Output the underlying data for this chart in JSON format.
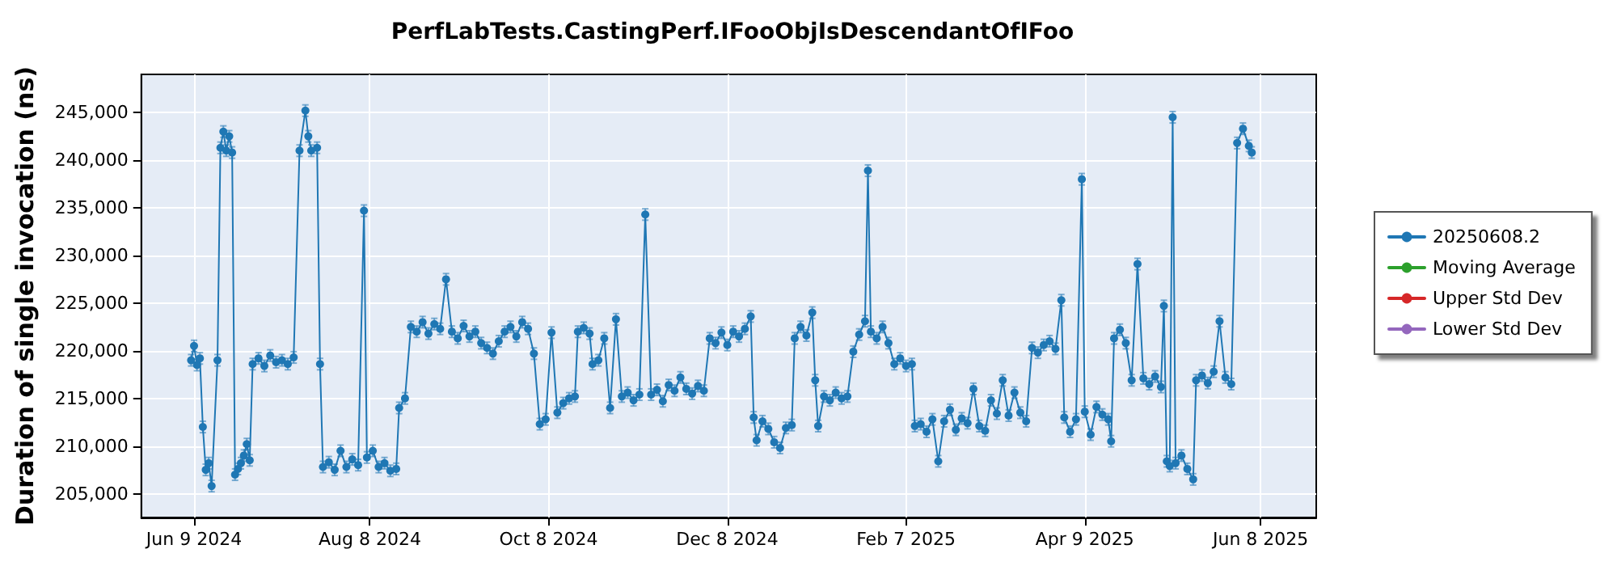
{
  "chart_data": {
    "type": "line",
    "title": "PerfLabTests.CastingPerf.IFooObjIsDescendantOfIFoo",
    "ylabel": "Duration of single invocation (ns)",
    "xlim": [
      "2024-05-22",
      "2025-06-27"
    ],
    "xticks": [
      {
        "value": "2024-06-09",
        "label": "Jun 9 2024"
      },
      {
        "value": "2024-08-08",
        "label": "Aug 8 2024"
      },
      {
        "value": "2024-10-08",
        "label": "Oct 8 2024"
      },
      {
        "value": "2024-12-08",
        "label": "Dec 8 2024"
      },
      {
        "value": "2025-02-07",
        "label": "Feb 7 2025"
      },
      {
        "value": "2025-04-09",
        "label": "Apr 9 2025"
      },
      {
        "value": "2025-06-08",
        "label": "Jun 8 2025"
      }
    ],
    "ylim": [
      202500,
      249000
    ],
    "yticks": [
      {
        "value": 205000,
        "label": "205,000"
      },
      {
        "value": 210000,
        "label": "210,000"
      },
      {
        "value": 215000,
        "label": "215,000"
      },
      {
        "value": 220000,
        "label": "220,000"
      },
      {
        "value": 225000,
        "label": "225,000"
      },
      {
        "value": 230000,
        "label": "230,000"
      },
      {
        "value": 235000,
        "label": "235,000"
      },
      {
        "value": 240000,
        "label": "240,000"
      },
      {
        "value": 245000,
        "label": "245,000"
      }
    ],
    "grid": true,
    "legend": "right",
    "marker": "circle",
    "line_style": "solid",
    "series": [
      {
        "name": "20250608.2",
        "color": "#1f77b4",
        "x": [
          "2024-06-08",
          "2024-06-09",
          "2024-06-10",
          "2024-06-11",
          "2024-06-12",
          "2024-06-13",
          "2024-06-14",
          "2024-06-15",
          "2024-06-17",
          "2024-06-18",
          "2024-06-19",
          "2024-06-20",
          "2024-06-21",
          "2024-06-22",
          "2024-06-23",
          "2024-06-24",
          "2024-06-25",
          "2024-06-26",
          "2024-06-27",
          "2024-06-28",
          "2024-06-29",
          "2024-07-01",
          "2024-07-03",
          "2024-07-05",
          "2024-07-07",
          "2024-07-09",
          "2024-07-11",
          "2024-07-13",
          "2024-07-15",
          "2024-07-17",
          "2024-07-18",
          "2024-07-19",
          "2024-07-21",
          "2024-07-22",
          "2024-07-23",
          "2024-07-25",
          "2024-07-27",
          "2024-07-29",
          "2024-07-31",
          "2024-08-02",
          "2024-08-04",
          "2024-08-06",
          "2024-08-07",
          "2024-08-09",
          "2024-08-11",
          "2024-08-13",
          "2024-08-15",
          "2024-08-17",
          "2024-08-18",
          "2024-08-20",
          "2024-08-22",
          "2024-08-24",
          "2024-08-26",
          "2024-08-28",
          "2024-08-30",
          "2024-09-01",
          "2024-09-03",
          "2024-09-05",
          "2024-09-07",
          "2024-09-09",
          "2024-09-11",
          "2024-09-13",
          "2024-09-15",
          "2024-09-17",
          "2024-09-19",
          "2024-09-21",
          "2024-09-23",
          "2024-09-25",
          "2024-09-27",
          "2024-09-29",
          "2024-10-01",
          "2024-10-03",
          "2024-10-05",
          "2024-10-07",
          "2024-10-09",
          "2024-10-11",
          "2024-10-13",
          "2024-10-15",
          "2024-10-17",
          "2024-10-18",
          "2024-10-20",
          "2024-10-22",
          "2024-10-23",
          "2024-10-25",
          "2024-10-27",
          "2024-10-29",
          "2024-10-31",
          "2024-11-02",
          "2024-11-04",
          "2024-11-06",
          "2024-11-08",
          "2024-11-10",
          "2024-11-12",
          "2024-11-14",
          "2024-11-16",
          "2024-11-18",
          "2024-11-20",
          "2024-11-22",
          "2024-11-24",
          "2024-11-26",
          "2024-11-28",
          "2024-11-30",
          "2024-12-02",
          "2024-12-04",
          "2024-12-06",
          "2024-12-08",
          "2024-12-10",
          "2024-12-12",
          "2024-12-14",
          "2024-12-16",
          "2024-12-17",
          "2024-12-18",
          "2024-12-20",
          "2024-12-22",
          "2024-12-24",
          "2024-12-26",
          "2024-12-28",
          "2024-12-30",
          "2024-12-31",
          "2025-01-02",
          "2025-01-04",
          "2025-01-06",
          "2025-01-07",
          "2025-01-08",
          "2025-01-10",
          "2025-01-12",
          "2025-01-14",
          "2025-01-16",
          "2025-01-18",
          "2025-01-20",
          "2025-01-22",
          "2025-01-24",
          "2025-01-25",
          "2025-01-26",
          "2025-01-28",
          "2025-01-30",
          "2025-02-01",
          "2025-02-03",
          "2025-02-05",
          "2025-02-07",
          "2025-02-09",
          "2025-02-10",
          "2025-02-12",
          "2025-02-14",
          "2025-02-16",
          "2025-02-18",
          "2025-02-20",
          "2025-02-22",
          "2025-02-24",
          "2025-02-26",
          "2025-02-28",
          "2025-03-02",
          "2025-03-04",
          "2025-03-06",
          "2025-03-08",
          "2025-03-10",
          "2025-03-12",
          "2025-03-14",
          "2025-03-16",
          "2025-03-18",
          "2025-03-20",
          "2025-03-22",
          "2025-03-24",
          "2025-03-26",
          "2025-03-28",
          "2025-03-30",
          "2025-04-01",
          "2025-04-02",
          "2025-04-04",
          "2025-04-06",
          "2025-04-08",
          "2025-04-09",
          "2025-04-11",
          "2025-04-13",
          "2025-04-15",
          "2025-04-17",
          "2025-04-18",
          "2025-04-19",
          "2025-04-21",
          "2025-04-23",
          "2025-04-25",
          "2025-04-27",
          "2025-04-29",
          "2025-05-01",
          "2025-05-03",
          "2025-05-05",
          "2025-05-06",
          "2025-05-07",
          "2025-05-08",
          "2025-05-09",
          "2025-05-10",
          "2025-05-12",
          "2025-05-14",
          "2025-05-16",
          "2025-05-17",
          "2025-05-19",
          "2025-05-21",
          "2025-05-23",
          "2025-05-25",
          "2025-05-27",
          "2025-05-29",
          "2025-05-31",
          "2025-06-02",
          "2025-06-04",
          "2025-06-05"
        ],
        "values": [
          219000,
          220500,
          218500,
          219200,
          212000,
          207500,
          208200,
          205800,
          219000,
          241300,
          243000,
          241000,
          242500,
          240800,
          207000,
          207600,
          208200,
          209000,
          210200,
          208500,
          218600,
          219200,
          218400,
          219500,
          218800,
          219000,
          218600,
          219300,
          241000,
          245200,
          242500,
          241000,
          241300,
          218600,
          207800,
          208300,
          207500,
          209500,
          207800,
          208600,
          208000,
          234700,
          208800,
          209500,
          207800,
          208200,
          207400,
          207600,
          214000,
          215000,
          222500,
          222000,
          223000,
          221800,
          222800,
          222300,
          227500,
          222000,
          221300,
          222600,
          221500,
          222000,
          220800,
          220300,
          219700,
          221000,
          222000,
          222500,
          221500,
          223000,
          222300,
          219700,
          212300,
          212800,
          221900,
          213500,
          214500,
          215000,
          215200,
          222000,
          222400,
          221800,
          218600,
          219000,
          221300,
          214000,
          223300,
          215200,
          215600,
          214800,
          215400,
          234300,
          215400,
          215900,
          214700,
          216400,
          215800,
          217200,
          216000,
          215500,
          216300,
          215800,
          221300,
          220800,
          221900,
          220600,
          222000,
          221500,
          222300,
          223600,
          213000,
          210600,
          212600,
          211800,
          210400,
          209800,
          211900,
          212200,
          221300,
          222500,
          221600,
          224000,
          216900,
          212100,
          215200,
          214800,
          215600,
          215000,
          215200,
          219900,
          221700,
          223100,
          238900,
          222000,
          221300,
          222500,
          220800,
          218600,
          219200,
          218400,
          218600,
          212100,
          212300,
          211500,
          212800,
          208400,
          212600,
          213800,
          211700,
          212900,
          212400,
          216000,
          212100,
          211600,
          214800,
          213400,
          216900,
          213200,
          215600,
          213500,
          212600,
          220300,
          219800,
          220600,
          221000,
          220200,
          225300,
          213000,
          211500,
          212800,
          238000,
          213600,
          211200,
          214100,
          213300,
          212800,
          210500,
          221300,
          222200,
          220800,
          216900,
          229100,
          217100,
          216500,
          217300,
          216200,
          224700,
          208400,
          207900,
          244500,
          208200,
          209000,
          207600,
          206500,
          216900,
          217400,
          216600,
          217800,
          223100,
          217200,
          216500,
          241800,
          243300,
          241500,
          240800
        ],
        "errors": [
          600,
          600,
          600,
          600,
          600,
          600,
          600,
          600,
          600,
          600,
          600,
          600,
          600,
          600,
          600,
          600,
          600,
          600,
          600,
          600,
          600,
          600,
          600,
          600,
          600,
          600,
          600,
          600,
          600,
          600,
          600,
          600,
          600,
          600,
          600,
          600,
          600,
          600,
          600,
          600,
          600,
          600,
          600,
          600,
          600,
          600,
          600,
          600,
          600,
          600,
          600,
          600,
          600,
          600,
          600,
          600,
          600,
          600,
          600,
          600,
          600,
          600,
          600,
          600,
          600,
          600,
          600,
          600,
          600,
          600,
          600,
          600,
          600,
          600,
          600,
          600,
          600,
          600,
          600,
          600,
          600,
          600,
          600,
          600,
          600,
          600,
          600,
          600,
          600,
          600,
          600,
          600,
          600,
          600,
          600,
          600,
          600,
          600,
          600,
          600,
          600,
          600,
          600,
          600,
          600,
          600,
          600,
          600,
          600,
          600,
          600,
          600,
          600,
          600,
          600,
          600,
          600,
          600,
          600,
          600,
          600,
          600,
          600,
          600,
          600,
          600,
          600,
          600,
          600,
          600,
          600,
          600,
          600,
          600,
          600,
          600,
          600,
          600,
          600,
          600,
          600,
          600,
          600,
          600,
          600,
          600,
          600,
          600,
          600,
          600,
          600,
          600,
          600,
          600,
          600,
          600,
          600,
          600,
          600,
          600,
          600,
          600,
          600,
          600,
          600,
          600,
          600,
          600,
          600,
          600,
          600,
          600,
          600,
          600,
          600,
          600,
          600,
          600,
          600,
          600,
          600,
          600,
          600,
          600,
          600,
          600,
          600,
          600,
          600,
          600,
          600,
          600,
          600,
          600,
          600,
          600,
          600,
          600,
          600,
          600,
          600,
          600,
          600,
          600,
          600
        ]
      },
      {
        "name": "Moving Average",
        "color": "#2ca02c"
      },
      {
        "name": "Upper Std Dev",
        "color": "#d62728"
      },
      {
        "name": "Lower Std Dev",
        "color": "#9467bd"
      }
    ]
  }
}
